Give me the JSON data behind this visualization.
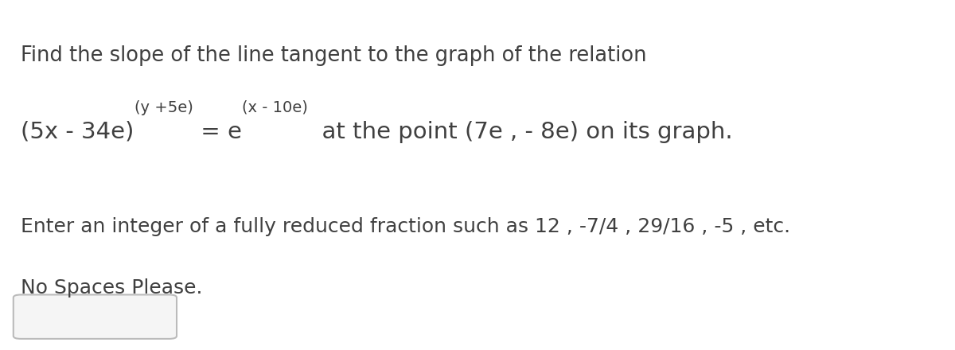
{
  "background_color": "#ffffff",
  "line1": "Find the slope of the line tangent to the graph of the relation",
  "line1_fontsize": 18.5,
  "line3": "Enter an integer of a fully reduced fraction such as 12 , -7/4 , 29/16 , -5 , etc.",
  "line3_fontsize": 18,
  "line4": "No Spaces Please.",
  "line4_fontsize": 18,
  "text_color": "#404040",
  "eq_fontsize": 21,
  "sup_fontsize": 14,
  "eq_main": "(5x - 34e)",
  "eq_sup1": "(y +5e)",
  "eq_mid": " = e",
  "eq_sup2": "(x - 10e)",
  "eq_after": "  at the point (7e , - 8e) on its graph.",
  "box_color": "#f5f5f5",
  "box_edge_color": "#bbbbbb"
}
